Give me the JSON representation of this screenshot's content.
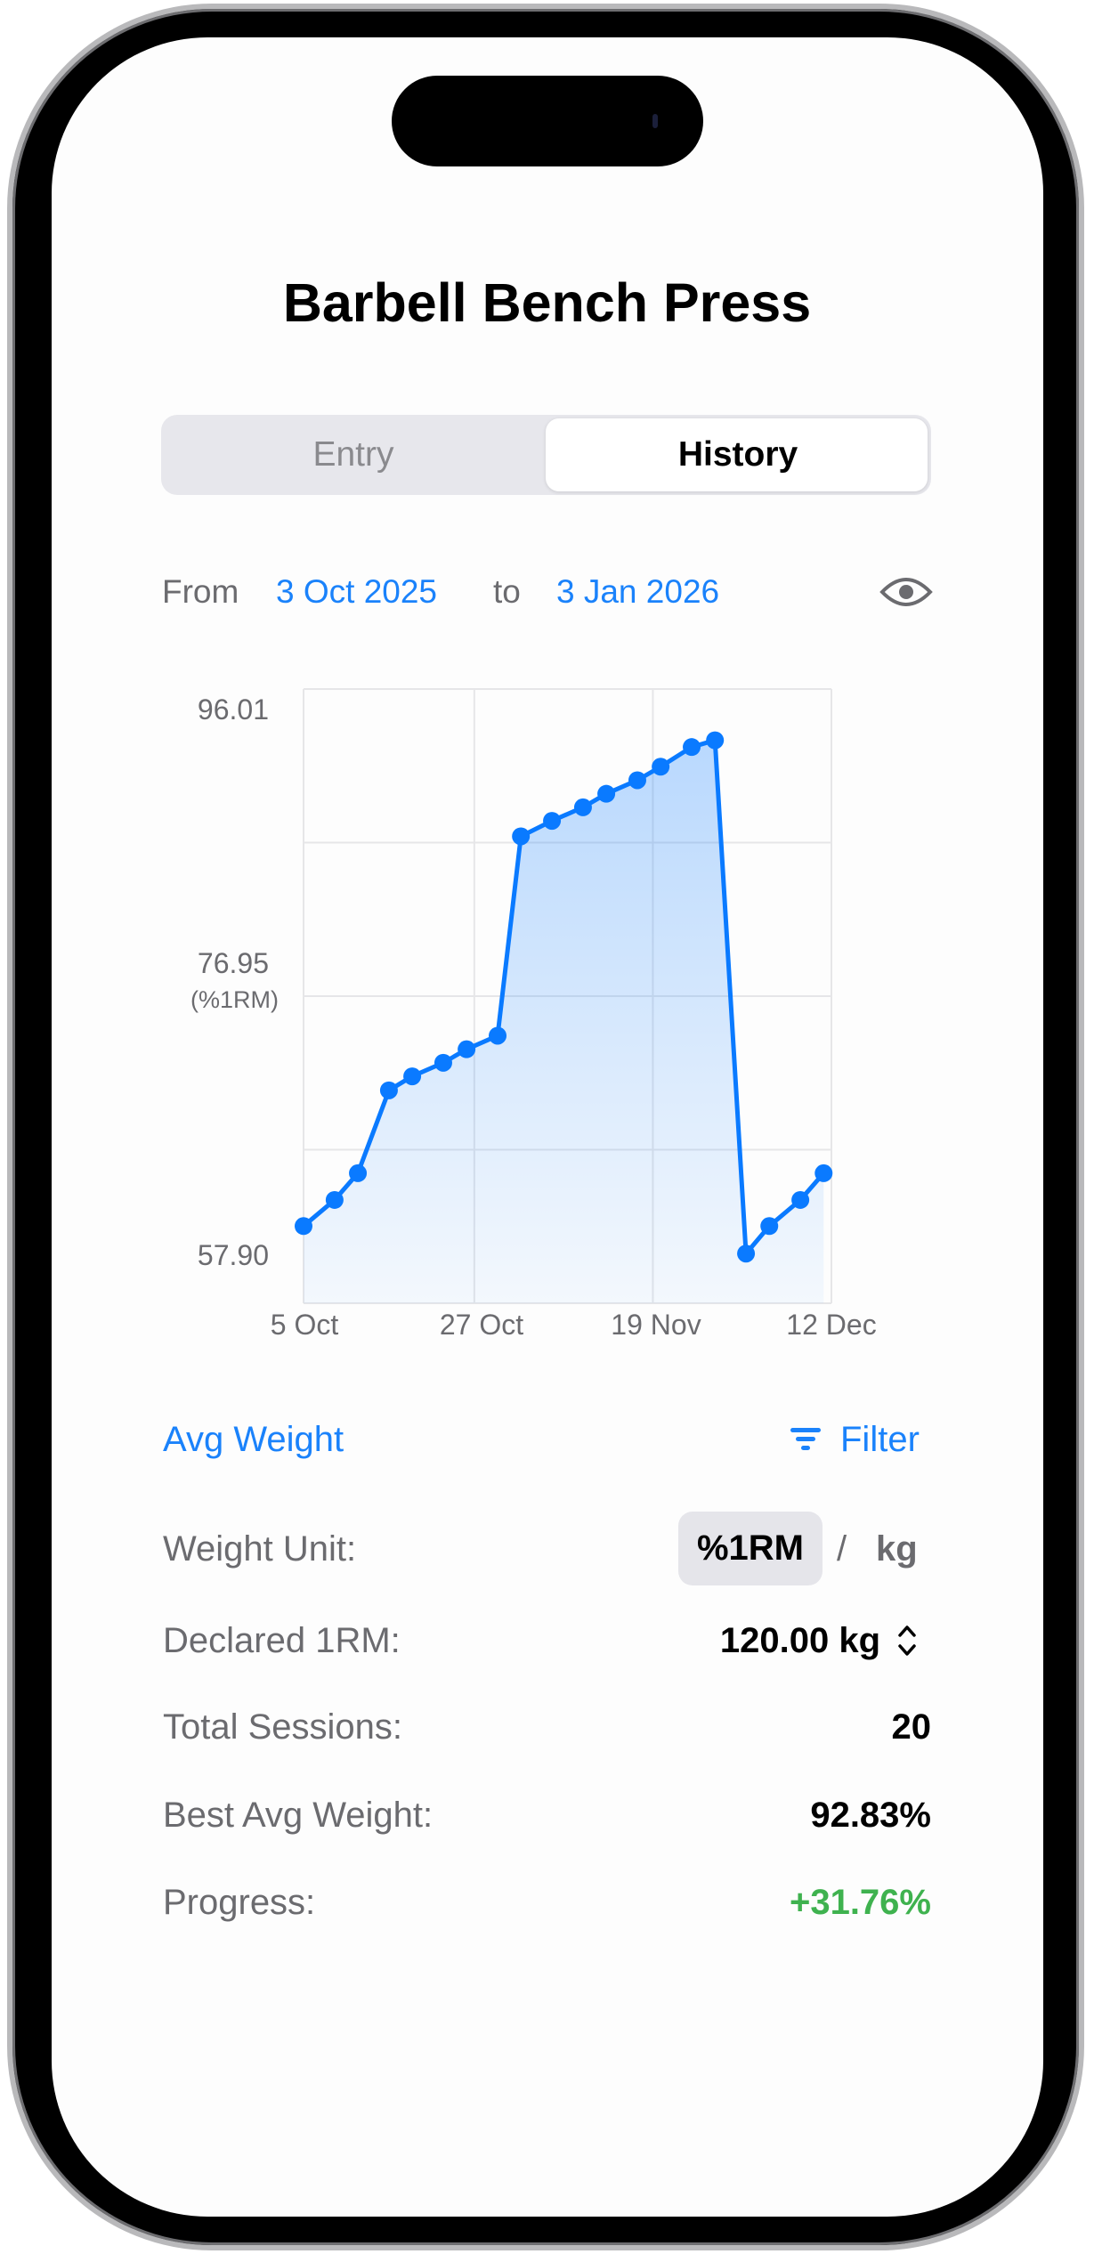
{
  "header": {
    "title": "Barbell Bench Press"
  },
  "segmented": {
    "items": [
      "Entry",
      "History"
    ],
    "selected": "History"
  },
  "date_range": {
    "from_label": "From",
    "from": "3 Oct 2025",
    "to_label": "to",
    "to": "3 Jan 2026",
    "visibility_icon": "eye-icon"
  },
  "section": {
    "title": "Avg Weight",
    "filter_label": "Filter",
    "filter_icon": "filter-lines-icon"
  },
  "stats": {
    "weight_unit_label": "Weight Unit:",
    "unit_options": [
      "%1RM",
      "/",
      "kg"
    ],
    "unit_selected": "%1RM",
    "declared_label": "Declared 1RM:",
    "declared_value": "120.00 kg",
    "declared_icon": "chevron-up-down-icon",
    "sessions_label": "Total Sessions:",
    "sessions_value": "20",
    "best_label": "Best Avg Weight:",
    "best_value": "92.83%",
    "progress_label": "Progress:",
    "progress_value": "+31.76%"
  },
  "colors": {
    "accent": "#1a82fb",
    "positive": "#3fb24f",
    "line": "#0a7aff"
  },
  "chart_data": {
    "type": "area",
    "ylabel": "(%1RM)",
    "ylim": [
      57.9,
      96.01
    ],
    "yticks": [
      "96.01",
      "76.95",
      "57.90"
    ],
    "xlim": [
      "2025-10-05",
      "2025-12-12"
    ],
    "xticks": [
      {
        "date": "2025-10-05",
        "label": "5 Oct"
      },
      {
        "date": "2025-10-27",
        "label": "27 Oct"
      },
      {
        "date": "2025-11-19",
        "label": "19 Nov"
      },
      {
        "date": "2025-12-12",
        "label": "12 Dec"
      }
    ],
    "grid": true,
    "x": [
      "2025-10-05",
      "2025-10-09",
      "2025-10-12",
      "2025-10-16",
      "2025-10-19",
      "2025-10-23",
      "2025-10-26",
      "2025-10-30",
      "2025-11-02",
      "2025-11-06",
      "2025-11-10",
      "2025-11-13",
      "2025-11-17",
      "2025-11-20",
      "2025-11-24",
      "2025-11-27",
      "2025-12-01",
      "2025-12-04",
      "2025-12-08",
      "2025-12-11"
    ],
    "values": [
      62.69,
      64.31,
      65.97,
      71.11,
      71.98,
      72.82,
      73.66,
      74.5,
      86.87,
      87.83,
      88.67,
      89.51,
      90.35,
      91.19,
      92.41,
      92.83,
      60.98,
      62.69,
      64.31,
      65.97
    ]
  }
}
